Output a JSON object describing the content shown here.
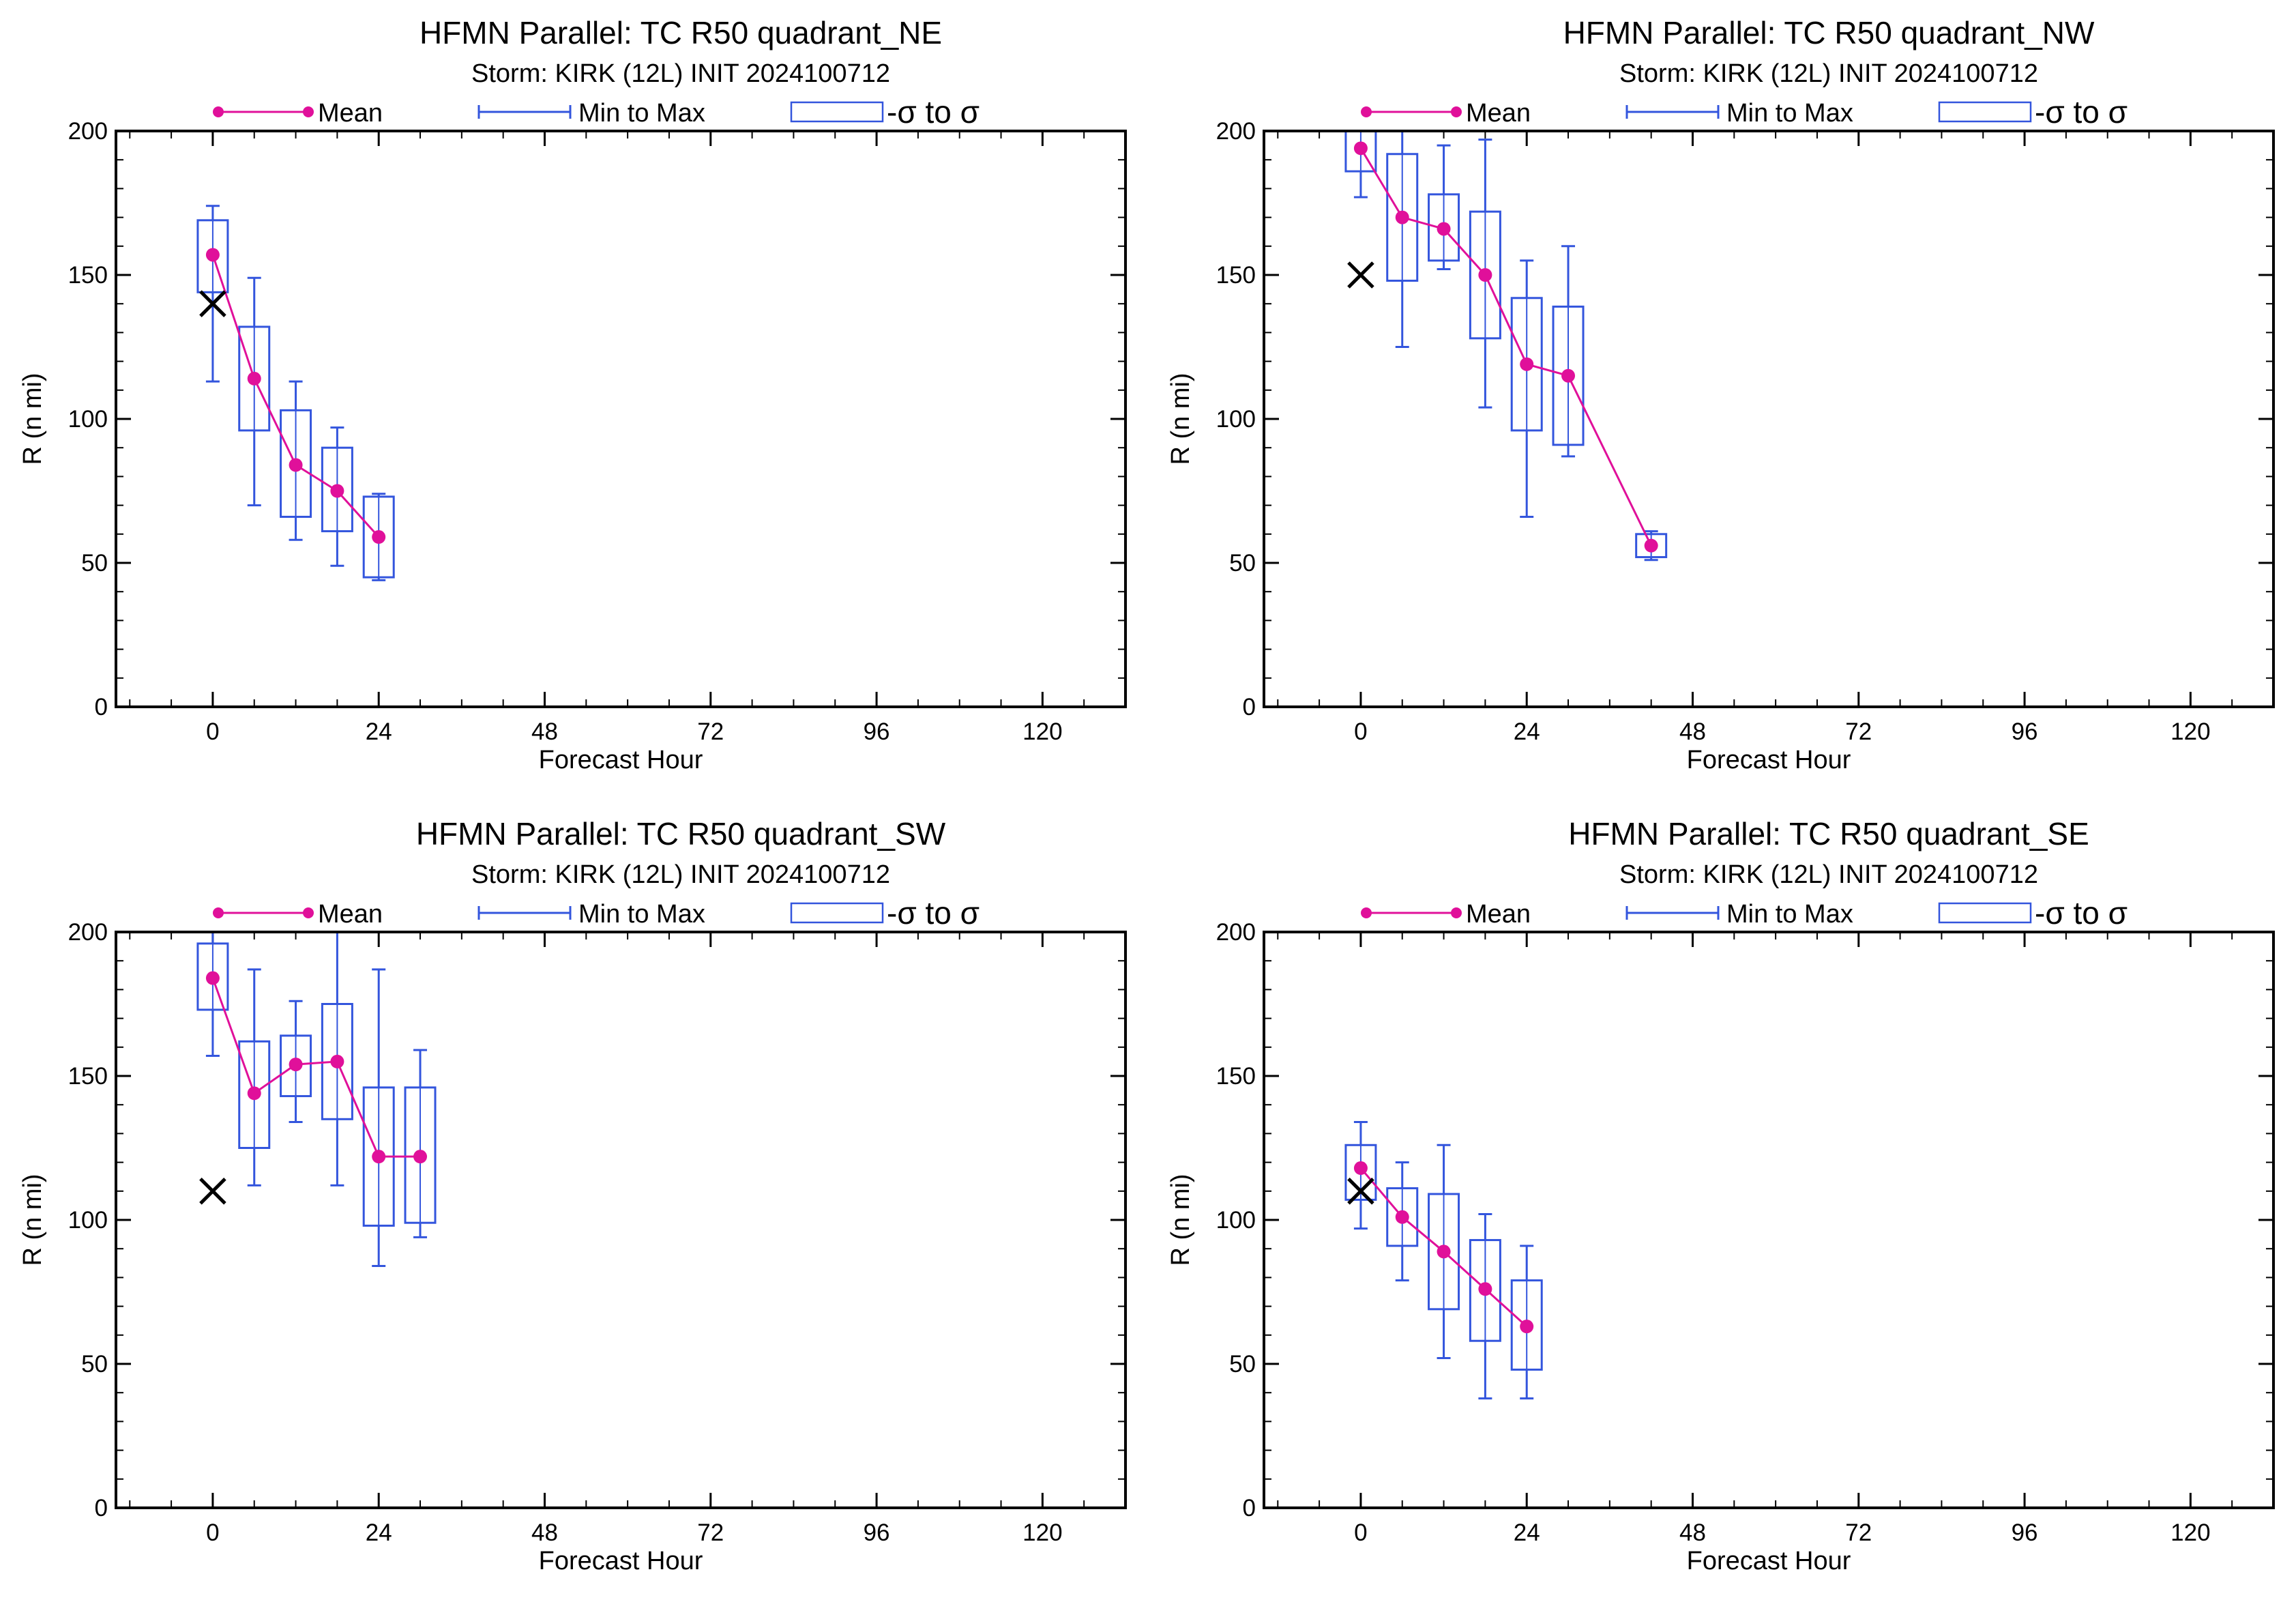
{
  "legend": {
    "mean_label": "Mean",
    "minmax_label": "Min to Max",
    "sigma_label": "-σ to σ"
  },
  "colors": {
    "mean": "#e0109a",
    "box": "#3355dd",
    "observed_marker": "#000000",
    "axes": "#000000"
  },
  "chart_data": [
    {
      "type": "box",
      "title": "HFMN Parallel: TC  R50 quadrant_NE",
      "subtitle": "Storm: KIRK (12L) INIT 2024100712",
      "xlabel": "Forecast Hour",
      "ylabel": "R (n mi)",
      "xlim": [
        -14,
        132
      ],
      "ylim": [
        0,
        200
      ],
      "xticks": [
        0,
        24,
        48,
        72,
        96,
        120
      ],
      "yticks": [
        0,
        50,
        100,
        150,
        200
      ],
      "observed": {
        "x": 0,
        "y": 140
      },
      "x": [
        0,
        6,
        12,
        18,
        24
      ],
      "mean": [
        157,
        114,
        84,
        75,
        59
      ],
      "min": [
        113,
        70,
        58,
        49,
        44
      ],
      "max": [
        174,
        149,
        113,
        97,
        74
      ],
      "sigma_low": [
        144,
        96,
        66,
        61,
        45
      ],
      "sigma_high": [
        169,
        132,
        103,
        90,
        73
      ]
    },
    {
      "type": "box",
      "title": "HFMN Parallel: TC  R50 quadrant_NW",
      "subtitle": "Storm: KIRK (12L) INIT 2024100712",
      "xlabel": "Forecast Hour",
      "ylabel": "R (n mi)",
      "xlim": [
        -14,
        132
      ],
      "ylim": [
        0,
        200
      ],
      "xticks": [
        0,
        24,
        48,
        72,
        96,
        120
      ],
      "yticks": [
        0,
        50,
        100,
        150,
        200
      ],
      "observed": {
        "x": 0,
        "y": 150
      },
      "x": [
        0,
        6,
        12,
        18,
        24,
        30,
        42
      ],
      "mean": [
        194,
        170,
        166,
        150,
        119,
        115,
        56
      ],
      "min": [
        177,
        125,
        152,
        104,
        66,
        87,
        51
      ],
      "max": [
        200,
        200,
        195,
        197,
        155,
        160,
        61
      ],
      "sigma_low": [
        186,
        148,
        155,
        128,
        96,
        91,
        52
      ],
      "sigma_high": [
        200,
        192,
        178,
        172,
        142,
        139,
        60
      ]
    },
    {
      "type": "box",
      "title": "HFMN Parallel: TC  R50 quadrant_SW",
      "subtitle": "Storm: KIRK (12L) INIT 2024100712",
      "xlabel": "Forecast Hour",
      "ylabel": "R (n mi)",
      "xlim": [
        -14,
        132
      ],
      "ylim": [
        0,
        200
      ],
      "xticks": [
        0,
        24,
        48,
        72,
        96,
        120
      ],
      "yticks": [
        0,
        50,
        100,
        150,
        200
      ],
      "observed": {
        "x": 0,
        "y": 110
      },
      "x": [
        0,
        6,
        12,
        18,
        24,
        30
      ],
      "mean": [
        184,
        144,
        154,
        155,
        122,
        122
      ],
      "min": [
        157,
        112,
        134,
        112,
        84,
        94
      ],
      "max": [
        200,
        187,
        176,
        200,
        187,
        159
      ],
      "sigma_low": [
        173,
        125,
        143,
        135,
        98,
        99
      ],
      "sigma_high": [
        196,
        162,
        164,
        175,
        146,
        146
      ]
    },
    {
      "type": "box",
      "title": "HFMN Parallel: TC  R50 quadrant_SE",
      "subtitle": "Storm: KIRK (12L) INIT 2024100712",
      "xlabel": "Forecast Hour",
      "ylabel": "R (n mi)",
      "xlim": [
        -14,
        132
      ],
      "ylim": [
        0,
        200
      ],
      "xticks": [
        0,
        24,
        48,
        72,
        96,
        120
      ],
      "yticks": [
        0,
        50,
        100,
        150,
        200
      ],
      "observed": {
        "x": 0,
        "y": 110
      },
      "x": [
        0,
        6,
        12,
        18,
        24
      ],
      "mean": [
        118,
        101,
        89,
        76,
        63
      ],
      "min": [
        97,
        79,
        52,
        38,
        38
      ],
      "max": [
        134,
        120,
        126,
        102,
        91
      ],
      "sigma_low": [
        107,
        91,
        69,
        58,
        48
      ],
      "sigma_high": [
        126,
        111,
        109,
        93,
        79
      ]
    }
  ]
}
